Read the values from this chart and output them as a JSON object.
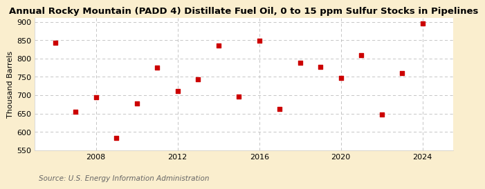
{
  "title": "Annual Rocky Mountain (PADD 4) Distillate Fuel Oil, 0 to 15 ppm Sulfur Stocks in Pipelines",
  "ylabel": "Thousand Barrels",
  "source": "Source: U.S. Energy Information Administration",
  "years": [
    2006,
    2007,
    2008,
    2009,
    2010,
    2011,
    2012,
    2013,
    2014,
    2015,
    2016,
    2017,
    2018,
    2019,
    2020,
    2021,
    2022,
    2023,
    2024
  ],
  "values": [
    843,
    655,
    695,
    583,
    678,
    776,
    711,
    743,
    835,
    696,
    849,
    663,
    789,
    778,
    747,
    810,
    648,
    761,
    895
  ],
  "ylim": [
    550,
    910
  ],
  "yticks": [
    550,
    600,
    650,
    700,
    750,
    800,
    850,
    900
  ],
  "xticks": [
    2008,
    2012,
    2016,
    2020,
    2024
  ],
  "xlim": [
    2005.0,
    2025.5
  ],
  "marker_color": "#cc0000",
  "marker": "s",
  "marker_size": 4,
  "fig_bg_color": "#faeece",
  "plot_bg_color": "#ffffff",
  "grid_color": "#bbbbbb",
  "title_fontsize": 9.5,
  "label_fontsize": 8,
  "tick_fontsize": 8,
  "source_fontsize": 7.5
}
